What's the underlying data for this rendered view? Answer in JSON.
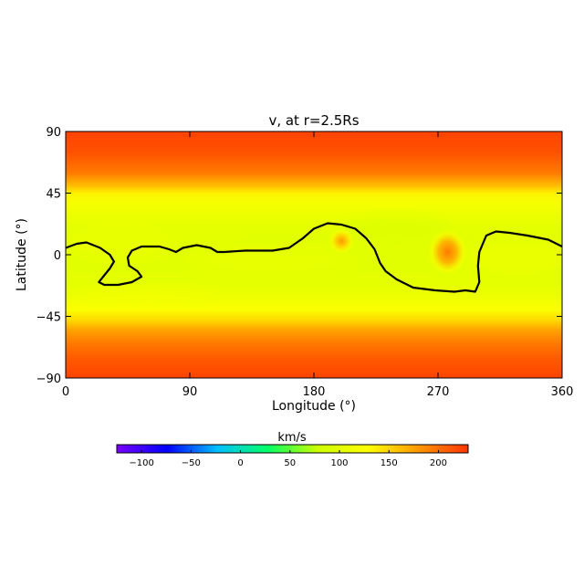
{
  "chart_data": {
    "type": "heatmap",
    "title": "v, at r=2.5Rs",
    "xlabel": "Longitude (°)",
    "ylabel": "Latitude (°)",
    "xlim": [
      0,
      360
    ],
    "ylim": [
      -90,
      90
    ],
    "x_ticks": [
      "0",
      "90",
      "180",
      "270",
      "360"
    ],
    "y_ticks": [
      "90",
      "45",
      "0",
      "−45",
      "−90"
    ],
    "colorbar": {
      "label": "km/s",
      "range": [
        -125,
        230
      ],
      "ticks": [
        "−100",
        "−50",
        "0",
        "50",
        "100",
        "150",
        "200"
      ],
      "tick_values": [
        -100,
        -50,
        0,
        50,
        100,
        150,
        200
      ]
    },
    "contour_line": {
      "color": "#000000",
      "points": [
        [
          0,
          5
        ],
        [
          8,
          8
        ],
        [
          15,
          9
        ],
        [
          25,
          5
        ],
        [
          32,
          0
        ],
        [
          35,
          -5
        ],
        [
          32,
          -10
        ],
        [
          28,
          -15
        ],
        [
          24,
          -20
        ],
        [
          28,
          -22
        ],
        [
          38,
          -22
        ],
        [
          48,
          -20
        ],
        [
          55,
          -16
        ],
        [
          52,
          -12
        ],
        [
          46,
          -8
        ],
        [
          45,
          -2
        ],
        [
          48,
          3
        ],
        [
          55,
          6
        ],
        [
          68,
          6
        ],
        [
          75,
          4
        ],
        [
          80,
          2
        ],
        [
          85,
          5
        ],
        [
          95,
          7
        ],
        [
          105,
          5
        ],
        [
          110,
          2
        ],
        [
          115,
          2
        ],
        [
          130,
          3
        ],
        [
          150,
          3
        ],
        [
          162,
          5
        ],
        [
          172,
          12
        ],
        [
          180,
          19
        ],
        [
          190,
          23
        ],
        [
          200,
          22
        ],
        [
          210,
          19
        ],
        [
          218,
          12
        ],
        [
          224,
          4
        ],
        [
          228,
          -6
        ],
        [
          232,
          -12
        ],
        [
          240,
          -18
        ],
        [
          252,
          -24
        ],
        [
          268,
          -26
        ],
        [
          282,
          -27
        ],
        [
          290,
          -26
        ],
        [
          297,
          -27
        ],
        [
          300,
          -20
        ],
        [
          299,
          -8
        ],
        [
          300,
          2
        ],
        [
          305,
          14
        ],
        [
          312,
          17
        ],
        [
          322,
          16
        ],
        [
          335,
          14
        ],
        [
          350,
          11
        ],
        [
          360,
          6
        ]
      ]
    },
    "speed_field": {
      "background_profile": [
        [
          90,
          222
        ],
        [
          75,
          215
        ],
        [
          60,
          195
        ],
        [
          50,
          160
        ],
        [
          45,
          135
        ],
        [
          38,
          120
        ],
        [
          30,
          112
        ],
        [
          20,
          102
        ],
        [
          10,
          100
        ],
        [
          0,
          100
        ],
        [
          -10,
          100
        ],
        [
          -20,
          102
        ],
        [
          -30,
          110
        ],
        [
          -40,
          125
        ],
        [
          -48,
          148
        ],
        [
          -55,
          175
        ],
        [
          -65,
          195
        ],
        [
          -75,
          210
        ],
        [
          -90,
          222
        ]
      ],
      "hotspots": [
        {
          "lon": 200,
          "lat": 10,
          "peak_kms": 178
        },
        {
          "lon": 277,
          "lat": 2,
          "peak_kms": 195
        }
      ]
    },
    "colors": {
      "scale": [
        "#7a00ff",
        "#0000ff",
        "#00bfff",
        "#00ff66",
        "#ccff00",
        "#ffff00",
        "#ff9900",
        "#ff3300"
      ],
      "axis": "#000000",
      "background": "#ffffff"
    }
  }
}
